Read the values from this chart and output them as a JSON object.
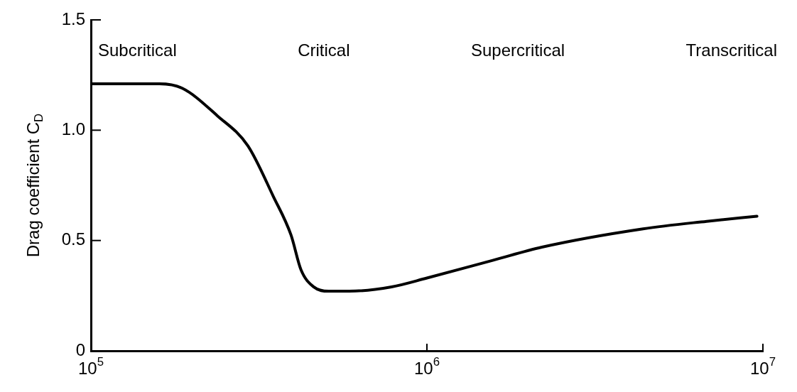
{
  "chart_data": {
    "type": "line",
    "ylabel": "Drag coefficient C$_{D}$",
    "log": "x",
    "xlim": [
      100000,
      10000000
    ],
    "xticks": [
      {
        "value": 100000,
        "label": "10$^{5}$"
      },
      {
        "value": 1000000,
        "label": "10$^{6}$"
      },
      {
        "value": 10000000,
        "label": "10$^{7}$"
      }
    ],
    "ylim": [
      0,
      1.5
    ],
    "yticks": [
      0,
      0.5,
      {
        "value": 1,
        "label": "1.0"
      },
      1.5
    ],
    "grid": false,
    "legend": false,
    "marker": "none",
    "line_style": "solid",
    "series": [
      {
        "color": "#000000",
        "x": [
          100000,
          160000,
          187000,
          238000,
          293000,
          349000,
          394000,
          422000,
          460000,
          510000,
          587000,
          785000,
          1000000,
          1570000,
          2200000,
          4400000,
          6800000,
          9600000
        ],
        "values": [
          1.21,
          1.21,
          1.19,
          1.065,
          0.93,
          0.7,
          0.525,
          0.367,
          0.29,
          0.27,
          0.27,
          0.29,
          0.33,
          0.41,
          0.47,
          0.553,
          0.587,
          0.61
        ]
      }
    ],
    "annotations": [
      "Subcritical",
      "Critical",
      "Supercritical",
      "Transcritical"
    ]
  }
}
